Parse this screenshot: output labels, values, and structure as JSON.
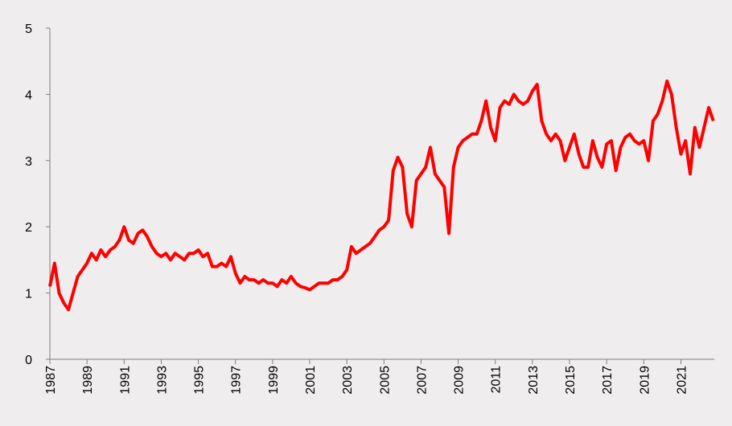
{
  "chart_data": {
    "type": "line",
    "x": [
      1987,
      1987.25,
      1987.5,
      1987.75,
      1988,
      1988.25,
      1988.5,
      1988.75,
      1989,
      1989.25,
      1989.5,
      1989.75,
      1990,
      1990.25,
      1990.5,
      1990.75,
      1991,
      1991.25,
      1991.5,
      1991.75,
      1992,
      1992.25,
      1992.5,
      1992.75,
      1993,
      1993.25,
      1993.5,
      1993.75,
      1994,
      1994.25,
      1994.5,
      1994.75,
      1995,
      1995.25,
      1995.5,
      1995.75,
      1996,
      1996.25,
      1996.5,
      1996.75,
      1997,
      1997.25,
      1997.5,
      1997.75,
      1998,
      1998.25,
      1998.5,
      1998.75,
      1999,
      1999.25,
      1999.5,
      1999.75,
      2000,
      2000.25,
      2000.5,
      2000.75,
      2001,
      2001.25,
      2001.5,
      2001.75,
      2002,
      2002.25,
      2002.5,
      2002.75,
      2003,
      2003.25,
      2003.5,
      2003.75,
      2004,
      2004.25,
      2004.5,
      2004.75,
      2005,
      2005.25,
      2005.5,
      2005.75,
      2006,
      2006.25,
      2006.5,
      2006.75,
      2007,
      2007.25,
      2007.5,
      2007.75,
      2008,
      2008.25,
      2008.5,
      2008.75,
      2009,
      2009.25,
      2009.5,
      2009.75,
      2010,
      2010.25,
      2010.5,
      2010.75,
      2011,
      2011.25,
      2011.5,
      2011.75,
      2012,
      2012.25,
      2012.5,
      2012.75,
      2013,
      2013.25,
      2013.5,
      2013.75,
      2014,
      2014.25,
      2014.5,
      2014.75,
      2015,
      2015.25,
      2015.5,
      2015.75,
      2016,
      2016.25,
      2016.5,
      2016.75,
      2017,
      2017.25,
      2017.5,
      2017.75,
      2018,
      2018.25,
      2018.5,
      2018.75,
      2019,
      2019.25,
      2019.5,
      2019.75,
      2020,
      2020.25,
      2020.5,
      2020.75,
      2021,
      2021.25,
      2021.5,
      2021.75,
      2022,
      2022.25,
      2022.5,
      2022.75
    ],
    "series": [
      {
        "color": "#ff0000",
        "values": [
          1.1,
          1.45,
          1.0,
          0.85,
          0.75,
          1.0,
          1.25,
          1.35,
          1.45,
          1.6,
          1.5,
          1.65,
          1.55,
          1.65,
          1.7,
          1.8,
          2.0,
          1.8,
          1.75,
          1.9,
          1.95,
          1.85,
          1.7,
          1.6,
          1.55,
          1.6,
          1.5,
          1.6,
          1.55,
          1.5,
          1.6,
          1.6,
          1.65,
          1.55,
          1.6,
          1.4,
          1.4,
          1.45,
          1.4,
          1.55,
          1.3,
          1.15,
          1.25,
          1.2,
          1.2,
          1.15,
          1.2,
          1.15,
          1.15,
          1.1,
          1.2,
          1.15,
          1.25,
          1.15,
          1.1,
          1.08,
          1.05,
          1.1,
          1.15,
          1.15,
          1.15,
          1.2,
          1.2,
          1.25,
          1.35,
          1.7,
          1.6,
          1.65,
          1.7,
          1.75,
          1.85,
          1.95,
          2.0,
          2.1,
          2.85,
          3.05,
          2.9,
          2.2,
          2.0,
          2.7,
          2.8,
          2.9,
          3.2,
          2.8,
          2.7,
          2.6,
          1.9,
          2.9,
          3.2,
          3.3,
          3.35,
          3.4,
          3.4,
          3.6,
          3.9,
          3.5,
          3.3,
          3.8,
          3.9,
          3.85,
          4.0,
          3.9,
          3.85,
          3.9,
          4.05,
          4.15,
          3.6,
          3.4,
          3.3,
          3.4,
          3.3,
          3.0,
          3.2,
          3.4,
          3.1,
          2.9,
          2.9,
          3.3,
          3.05,
          2.9,
          3.25,
          3.3,
          2.85,
          3.2,
          3.35,
          3.4,
          3.3,
          3.25,
          3.3,
          3.0,
          3.6,
          3.7,
          3.9,
          4.2,
          4.0,
          3.5,
          3.1,
          3.3,
          2.8,
          3.5,
          3.2,
          3.5,
          3.8,
          3.6
        ]
      }
    ],
    "xlim": [
      1987,
      2022.8
    ],
    "xticks": [
      1987,
      1989,
      1991,
      1993,
      1995,
      1997,
      1999,
      2001,
      2003,
      2005,
      2007,
      2009,
      2011,
      2013,
      2015,
      2017,
      2019,
      2021
    ],
    "ylim": [
      0,
      5
    ],
    "yticks": [
      0,
      1,
      2,
      3,
      4,
      5
    ],
    "grid": false
  }
}
